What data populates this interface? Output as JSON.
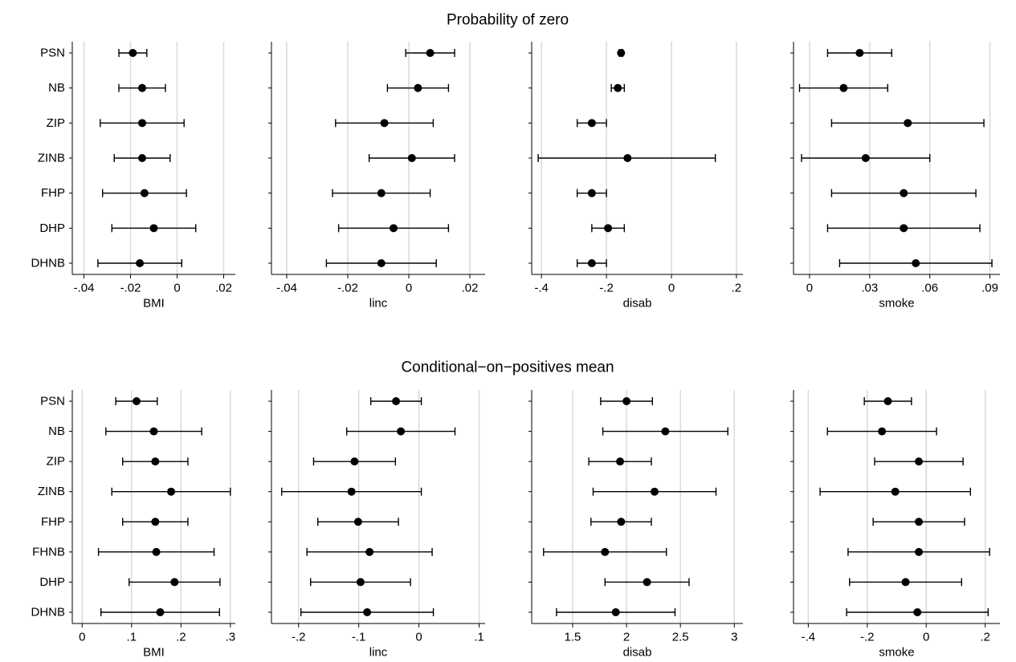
{
  "chart_data": [
    {
      "type": "scatter",
      "title": "Probability of zero",
      "models": [
        "PSN",
        "NB",
        "ZIP",
        "ZINB",
        "FHP",
        "DHP",
        "DHNB"
      ],
      "panels": [
        {
          "xlabel": "BMI",
          "xlim": [
            -0.045,
            0.025
          ],
          "xticks": [
            -0.04,
            -0.02,
            0,
            0.02
          ],
          "xtick_labels": [
            "-.04",
            "-.02",
            "0",
            ".02"
          ],
          "points": [
            {
              "model": "PSN",
              "estimate": -0.019,
              "lower": -0.025,
              "upper": -0.013
            },
            {
              "model": "NB",
              "estimate": -0.015,
              "lower": -0.025,
              "upper": -0.005
            },
            {
              "model": "ZIP",
              "estimate": -0.015,
              "lower": -0.033,
              "upper": 0.003
            },
            {
              "model": "ZINB",
              "estimate": -0.015,
              "lower": -0.027,
              "upper": -0.003
            },
            {
              "model": "FHP",
              "estimate": -0.014,
              "lower": -0.032,
              "upper": 0.004
            },
            {
              "model": "DHP",
              "estimate": -0.01,
              "lower": -0.028,
              "upper": 0.008
            },
            {
              "model": "DHNB",
              "estimate": -0.016,
              "lower": -0.034,
              "upper": 0.002
            }
          ]
        },
        {
          "xlabel": "linc",
          "xlim": [
            -0.045,
            0.025
          ],
          "xticks": [
            -0.04,
            -0.02,
            0,
            0.02
          ],
          "xtick_labels": [
            "-.04",
            "-.02",
            "0",
            ".02"
          ],
          "points": [
            {
              "model": "PSN",
              "estimate": 0.007,
              "lower": -0.001,
              "upper": 0.015
            },
            {
              "model": "NB",
              "estimate": 0.003,
              "lower": -0.007,
              "upper": 0.013
            },
            {
              "model": "ZIP",
              "estimate": -0.008,
              "lower": -0.024,
              "upper": 0.008
            },
            {
              "model": "ZINB",
              "estimate": 0.001,
              "lower": -0.013,
              "upper": 0.015
            },
            {
              "model": "FHP",
              "estimate": -0.009,
              "lower": -0.025,
              "upper": 0.007
            },
            {
              "model": "DHP",
              "estimate": -0.005,
              "lower": -0.023,
              "upper": 0.013
            },
            {
              "model": "DHNB",
              "estimate": -0.009,
              "lower": -0.027,
              "upper": 0.009
            }
          ]
        },
        {
          "xlabel": "disab",
          "xlim": [
            -0.43,
            0.22
          ],
          "xticks": [
            -0.4,
            -0.2,
            0,
            0.2
          ],
          "xtick_labels": [
            "-.4",
            "-.2",
            "0",
            ".2"
          ],
          "points": [
            {
              "model": "PSN",
              "estimate": -0.155,
              "lower": -0.16,
              "upper": -0.15
            },
            {
              "model": "NB",
              "estimate": -0.165,
              "lower": -0.185,
              "upper": -0.145
            },
            {
              "model": "ZIP",
              "estimate": -0.245,
              "lower": -0.29,
              "upper": -0.2
            },
            {
              "model": "ZINB",
              "estimate": -0.135,
              "lower": -0.41,
              "upper": 0.135
            },
            {
              "model": "FHP",
              "estimate": -0.245,
              "lower": -0.29,
              "upper": -0.2
            },
            {
              "model": "DHP",
              "estimate": -0.195,
              "lower": -0.245,
              "upper": -0.145
            },
            {
              "model": "DHNB",
              "estimate": -0.245,
              "lower": -0.29,
              "upper": -0.2
            }
          ]
        },
        {
          "xlabel": "smoke",
          "xlim": [
            -0.008,
            0.095
          ],
          "xticks": [
            0,
            0.03,
            0.06,
            0.09
          ],
          "xtick_labels": [
            "0",
            ".03",
            ".06",
            ".09"
          ],
          "points": [
            {
              "model": "PSN",
              "estimate": 0.025,
              "lower": 0.009,
              "upper": 0.041
            },
            {
              "model": "NB",
              "estimate": 0.017,
              "lower": -0.005,
              "upper": 0.039
            },
            {
              "model": "ZIP",
              "estimate": 0.049,
              "lower": 0.011,
              "upper": 0.087
            },
            {
              "model": "ZINB",
              "estimate": 0.028,
              "lower": -0.004,
              "upper": 0.06
            },
            {
              "model": "FHP",
              "estimate": 0.047,
              "lower": 0.011,
              "upper": 0.083
            },
            {
              "model": "DHP",
              "estimate": 0.047,
              "lower": 0.009,
              "upper": 0.085
            },
            {
              "model": "DHNB",
              "estimate": 0.053,
              "lower": 0.015,
              "upper": 0.091
            }
          ]
        }
      ]
    },
    {
      "type": "scatter",
      "title": "Conditional−on−positives mean",
      "models": [
        "PSN",
        "NB",
        "ZIP",
        "ZINB",
        "FHP",
        "FHNB",
        "DHP",
        "DHNB"
      ],
      "panels": [
        {
          "xlabel": "BMI",
          "xlim": [
            -0.02,
            0.31
          ],
          "xticks": [
            0,
            0.1,
            0.2,
            0.3
          ],
          "xtick_labels": [
            "0",
            ".1",
            ".2",
            ".3"
          ],
          "points": [
            {
              "model": "PSN",
              "estimate": 0.11,
              "lower": 0.068,
              "upper": 0.152
            },
            {
              "model": "NB",
              "estimate": 0.145,
              "lower": 0.048,
              "upper": 0.242
            },
            {
              "model": "ZIP",
              "estimate": 0.148,
              "lower": 0.082,
              "upper": 0.214
            },
            {
              "model": "ZINB",
              "estimate": 0.18,
              "lower": 0.06,
              "upper": 0.3
            },
            {
              "model": "FHP",
              "estimate": 0.148,
              "lower": 0.082,
              "upper": 0.214
            },
            {
              "model": "FHNB",
              "estimate": 0.15,
              "lower": 0.033,
              "upper": 0.267
            },
            {
              "model": "DHP",
              "estimate": 0.187,
              "lower": 0.095,
              "upper": 0.279
            },
            {
              "model": "DHNB",
              "estimate": 0.158,
              "lower": 0.038,
              "upper": 0.278
            }
          ]
        },
        {
          "xlabel": "linc",
          "xlim": [
            -0.245,
            0.11
          ],
          "xticks": [
            -0.2,
            -0.1,
            0,
            0.1
          ],
          "xtick_labels": [
            "-.2",
            "-.1",
            "0",
            ".1"
          ],
          "points": [
            {
              "model": "PSN",
              "estimate": -0.038,
              "lower": -0.08,
              "upper": 0.004
            },
            {
              "model": "NB",
              "estimate": -0.03,
              "lower": -0.12,
              "upper": 0.06
            },
            {
              "model": "ZIP",
              "estimate": -0.107,
              "lower": -0.175,
              "upper": -0.039
            },
            {
              "model": "ZINB",
              "estimate": -0.112,
              "lower": -0.228,
              "upper": 0.004
            },
            {
              "model": "FHP",
              "estimate": -0.101,
              "lower": -0.168,
              "upper": -0.034
            },
            {
              "model": "FHNB",
              "estimate": -0.082,
              "lower": -0.186,
              "upper": 0.022
            },
            {
              "model": "DHP",
              "estimate": -0.097,
              "lower": -0.18,
              "upper": -0.014
            },
            {
              "model": "DHNB",
              "estimate": -0.086,
              "lower": -0.196,
              "upper": 0.024
            }
          ]
        },
        {
          "xlabel": "disab",
          "xlim": [
            1.12,
            3.08
          ],
          "xticks": [
            1.5,
            2,
            2.5,
            3
          ],
          "xtick_labels": [
            "1.5",
            "2",
            "2.5",
            "3"
          ],
          "points": [
            {
              "model": "PSN",
              "estimate": 2.0,
              "lower": 1.76,
              "upper": 2.24
            },
            {
              "model": "NB",
              "estimate": 2.36,
              "lower": 1.78,
              "upper": 2.94
            },
            {
              "model": "ZIP",
              "estimate": 1.94,
              "lower": 1.65,
              "upper": 2.23
            },
            {
              "model": "ZINB",
              "estimate": 2.26,
              "lower": 1.69,
              "upper": 2.83
            },
            {
              "model": "FHP",
              "estimate": 1.95,
              "lower": 1.67,
              "upper": 2.23
            },
            {
              "model": "FHNB",
              "estimate": 1.8,
              "lower": 1.23,
              "upper": 2.37
            },
            {
              "model": "DHP",
              "estimate": 2.19,
              "lower": 1.8,
              "upper": 2.58
            },
            {
              "model": "DHNB",
              "estimate": 1.9,
              "lower": 1.35,
              "upper": 2.45
            }
          ]
        },
        {
          "xlabel": "smoke",
          "xlim": [
            -0.45,
            0.25
          ],
          "xticks": [
            -0.4,
            -0.2,
            0,
            0.2
          ],
          "xtick_labels": [
            "-.4",
            "-.2",
            "0",
            ".2"
          ],
          "points": [
            {
              "model": "PSN",
              "estimate": -0.13,
              "lower": -0.21,
              "upper": -0.05
            },
            {
              "model": "NB",
              "estimate": -0.15,
              "lower": -0.335,
              "upper": 0.035
            },
            {
              "model": "ZIP",
              "estimate": -0.025,
              "lower": -0.175,
              "upper": 0.125
            },
            {
              "model": "ZINB",
              "estimate": -0.105,
              "lower": -0.36,
              "upper": 0.15
            },
            {
              "model": "FHP",
              "estimate": -0.025,
              "lower": -0.18,
              "upper": 0.13
            },
            {
              "model": "FHNB",
              "estimate": -0.025,
              "lower": -0.265,
              "upper": 0.215
            },
            {
              "model": "DHP",
              "estimate": -0.07,
              "lower": -0.26,
              "upper": 0.12
            },
            {
              "model": "DHNB",
              "estimate": -0.03,
              "lower": -0.27,
              "upper": 0.21
            }
          ]
        }
      ]
    }
  ]
}
